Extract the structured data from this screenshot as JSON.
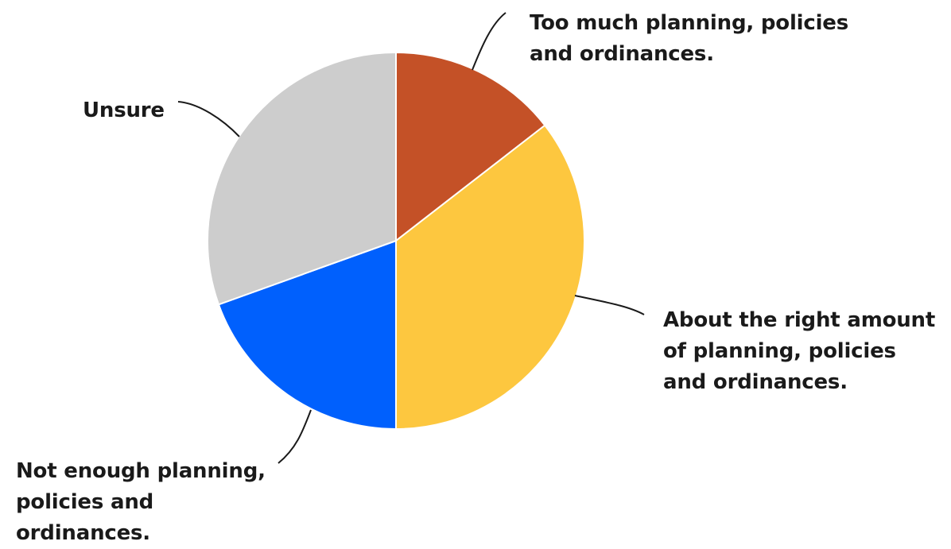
{
  "chart_data": {
    "type": "pie",
    "title": "",
    "start_angle": "12 o'clock",
    "direction": "clockwise",
    "slices": [
      {
        "label": "Too much planning, policies and ordinances.",
        "value": 14.5,
        "color": "#c45127"
      },
      {
        "label": "About the right amount of planning, policies and ordinances.",
        "value": 35.5,
        "color": "#fdc73f"
      },
      {
        "label": "Not enough planning, policies and ordinances.",
        "value": 19.5,
        "color": "#0060fd"
      },
      {
        "label": "Unsure",
        "value": 30.5,
        "color": "#cdcdcd"
      }
    ],
    "units": "percent (estimated)"
  }
}
